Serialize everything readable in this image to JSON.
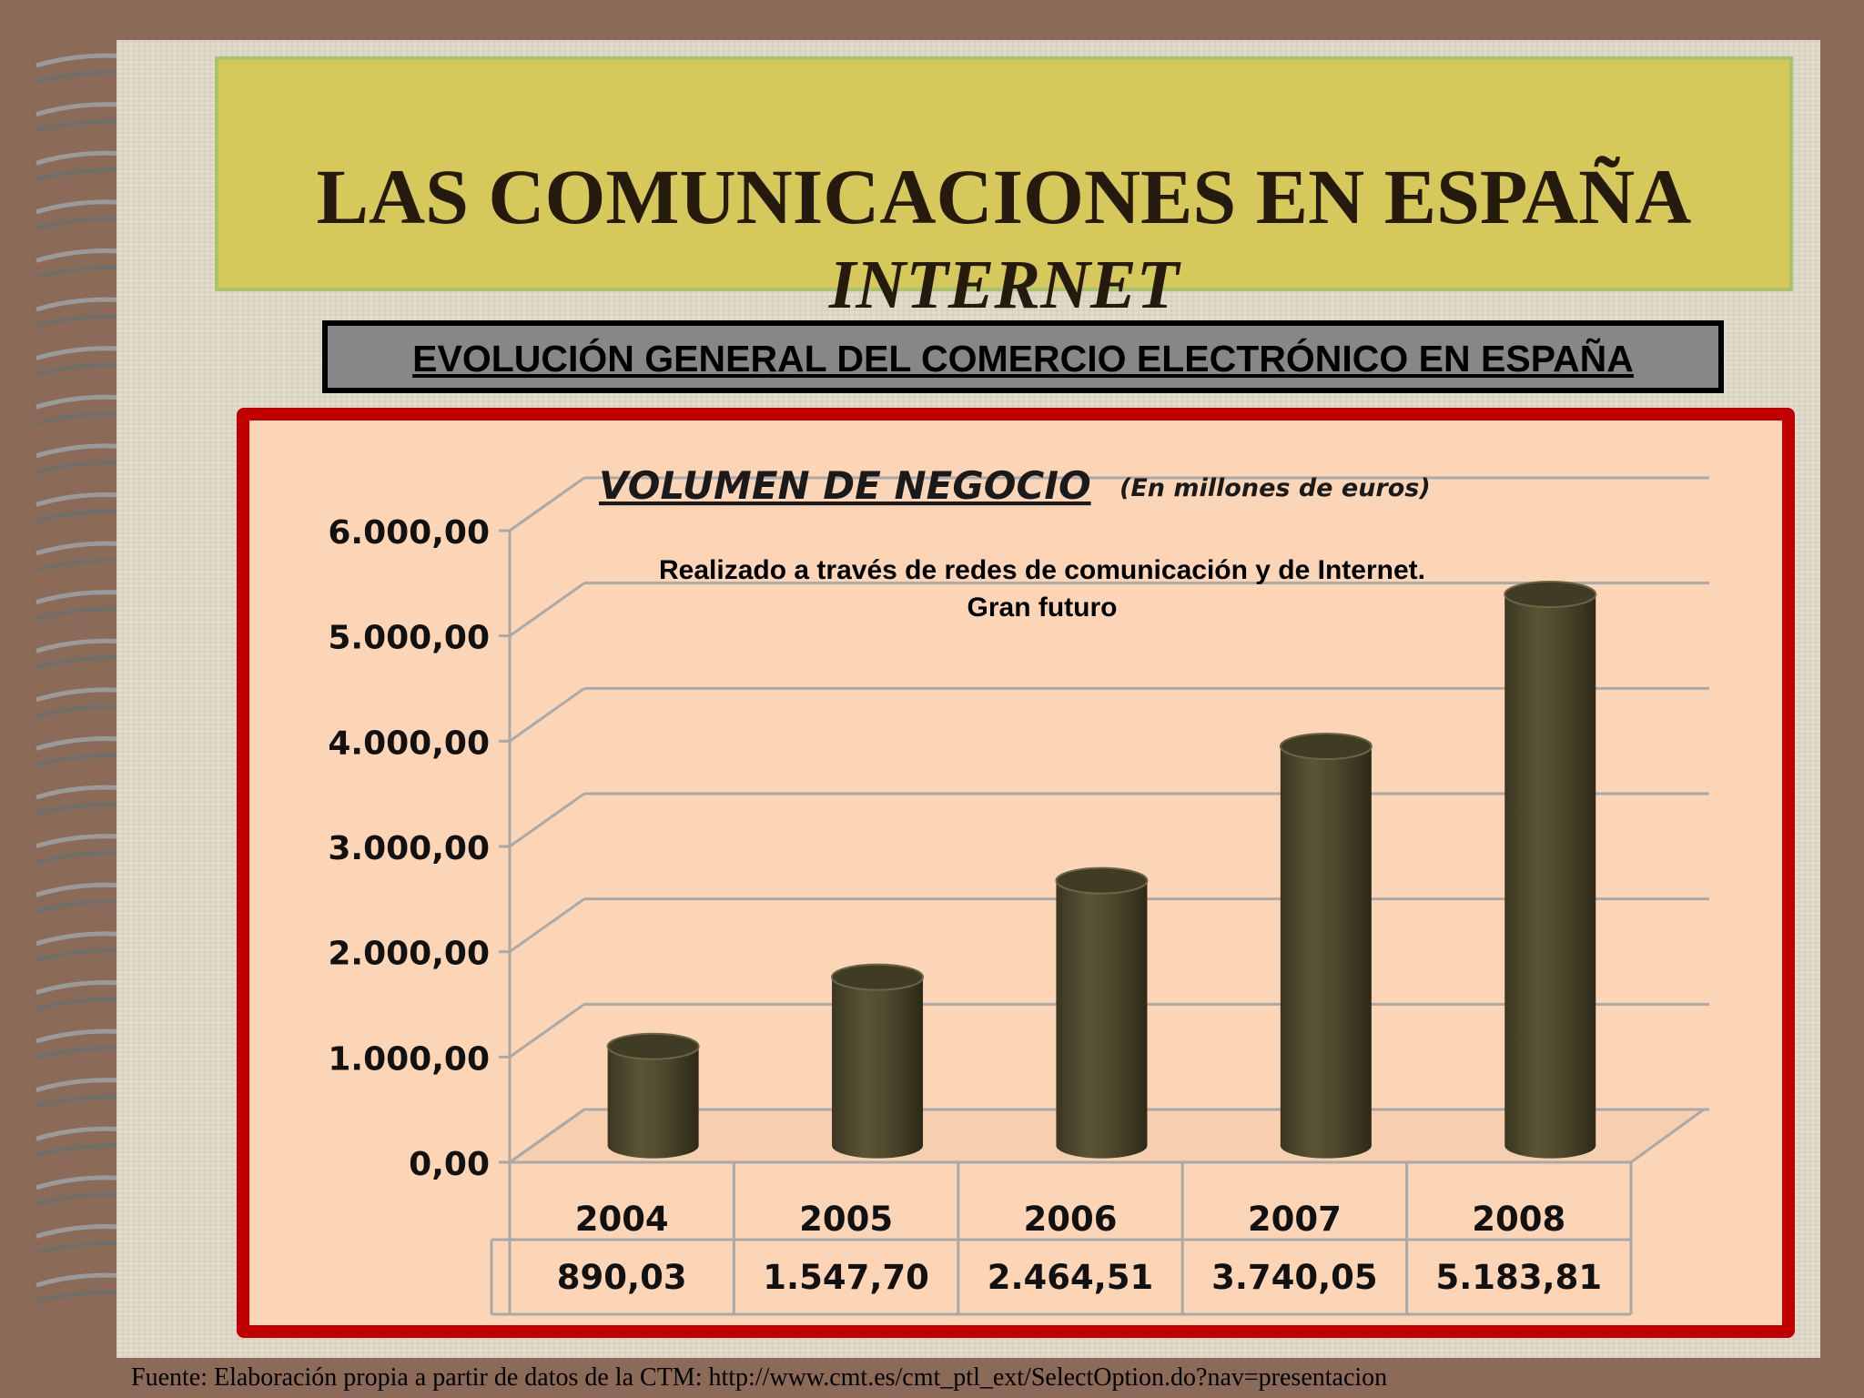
{
  "title": {
    "line1": "LAS COMUNICACIONES EN ESPAÑA",
    "line2": "INTERNET"
  },
  "subtitle": "EVOLUCIÓN GENERAL DEL COMERCIO ELECTRÓNICO EN ESPAÑA",
  "source": "Fuente: Elaboración propia a partir de datos de la CTM:  http://www.cmt.es/cmt_ptl_ext/SelectOption.do?nav=presentacion",
  "colors": {
    "background": "#8c6a58",
    "title_box": "#d6c85a",
    "chart_frame": "#c00000",
    "chart_background": "#fcd5b7",
    "bars": "#4e4a2e"
  },
  "chart_data": {
    "type": "bar",
    "title": "VOLUMEN DE NEGOCIO",
    "title_note": "(En millones de euros)",
    "annotation": [
      "Realizado a través de redes de comunicación y de Internet.",
      "Gran futuro"
    ],
    "categories": [
      "2004",
      "2005",
      "2006",
      "2007",
      "2008"
    ],
    "values": [
      890.03,
      1547.7,
      2464.51,
      3740.05,
      5183.81
    ],
    "value_labels": [
      "890,03",
      "1.547,70",
      "2.464,51",
      "3.740,05",
      "5.183,81"
    ],
    "ylim": [
      0,
      6000
    ],
    "yticks": [
      0,
      1000,
      2000,
      3000,
      4000,
      5000,
      6000
    ],
    "ytick_labels": [
      "0,00",
      "1.000,00",
      "2.000,00",
      "3.000,00",
      "4.000,00",
      "5.000,00",
      "6.000,00"
    ],
    "grid": true,
    "data_table": true
  }
}
